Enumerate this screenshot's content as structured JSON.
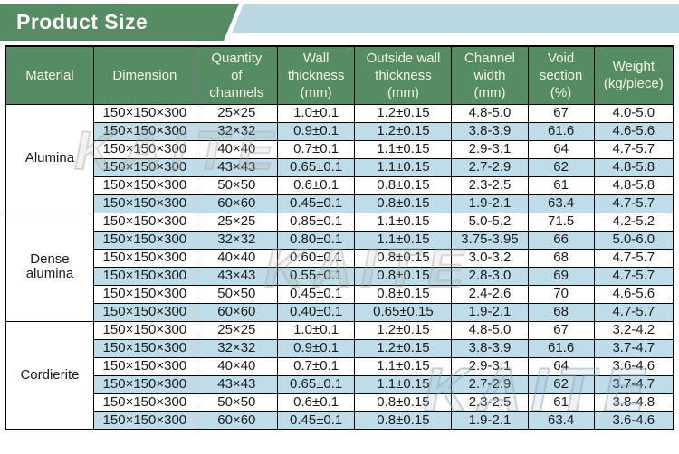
{
  "banner": {
    "title": "Product Size",
    "green_color": "#568c64",
    "blue_color": "#b9d8e2"
  },
  "watermark": {
    "text": "KAITE"
  },
  "colors": {
    "header_green": "#568c64",
    "row_alt_blue": "#bedde9",
    "border": "#000000"
  },
  "table": {
    "headers": [
      "Material",
      "Dimension",
      "Quantity\nof\nchannels",
      "Wall\nthickness\n(mm)",
      "Outside wall\nthickness\n(mm)",
      "Channel\nwidth\n(mm)",
      "Void\nsection\n(%)",
      "Weight\n(kg/piece)"
    ],
    "groups": [
      {
        "material": "Alumina",
        "rows": [
          [
            "150×150×300",
            "25×25",
            "1.0±0.1",
            "1.2±0.15",
            "4.8-5.0",
            "67",
            "4.0-5.0"
          ],
          [
            "150×150×300",
            "32×32",
            "0.9±0.1",
            "1.2±0.15",
            "3.8-3.9",
            "61.6",
            "4.6-5.6"
          ],
          [
            "150×150×300",
            "40×40",
            "0.7±0.1",
            "1.1±0.15",
            "2.9-3.1",
            "64",
            "4.7-5.7"
          ],
          [
            "150×150×300",
            "43×43",
            "0.65±0.1",
            "1.1±0.15",
            "2.7-2.9",
            "62",
            "4.8-5.8"
          ],
          [
            "150×150×300",
            "50×50",
            "0.6±0.1",
            "0.8±0.15",
            "2.3-2.5",
            "61",
            "4.8-5.8"
          ],
          [
            "150×150×300",
            "60×60",
            "0.45±0.1",
            "0.8±0.15",
            "1.9-2.1",
            "63.4",
            "4.7-5.7"
          ]
        ]
      },
      {
        "material": "Dense\nalumina",
        "rows": [
          [
            "150×150×300",
            "25×25",
            "0.85±0.1",
            "1.1±0.15",
            "5.0-5.2",
            "71.5",
            "4.2-5.2"
          ],
          [
            "150×150×300",
            "32×32",
            "0.80±0.1",
            "1.1±0.15",
            "3.75-3.95",
            "66",
            "5.0-6.0"
          ],
          [
            "150×150×300",
            "40×40",
            "0.60±0.1",
            "0.8±0.15",
            "3.0-3.2",
            "68",
            "4.7-5.7"
          ],
          [
            "150×150×300",
            "43×43",
            "0.55±0.1",
            "0.8±0.15",
            "2.8-3.0",
            "69",
            "4.7-5.7"
          ],
          [
            "150×150×300",
            "50×50",
            "0.45±0.1",
            "0.8±0.15",
            "2.4-2.6",
            "70",
            "4.6-5.6"
          ],
          [
            "150×150×300",
            "60×60",
            "0.40±0.1",
            "0.65±0.15",
            "1.9-2.1",
            "68",
            "4.7-5.7"
          ]
        ]
      },
      {
        "material": "Cordierite",
        "rows": [
          [
            "150×150×300",
            "25×25",
            "1.0±0.1",
            "1.2±0.15",
            "4.8-5.0",
            "67",
            "3.2-4.2"
          ],
          [
            "150×150×300",
            "32×32",
            "0.9±0.1",
            "1.2±0.15",
            "3.8-3.9",
            "61.6",
            "3.7-4.7"
          ],
          [
            "150×150×300",
            "40×40",
            "0.7±0.1",
            "1.1±0.15",
            "2.9-3.1",
            "64",
            "3.6-4.6"
          ],
          [
            "150×150×300",
            "43×43",
            "0.65±0.1",
            "1.1±0.15",
            "2.7-2.9",
            "62",
            "3.7-4.7"
          ],
          [
            "150×150×300",
            "50×50",
            "0.6±0.1",
            "0.8±0.15",
            "2.3-2.5",
            "61",
            "3.8-4.8"
          ],
          [
            "150×150×300",
            "60×60",
            "0.45±0.1",
            "0.8±0.15",
            "1.9-2.1",
            "63.4",
            "3.6-4.6"
          ]
        ]
      }
    ]
  }
}
